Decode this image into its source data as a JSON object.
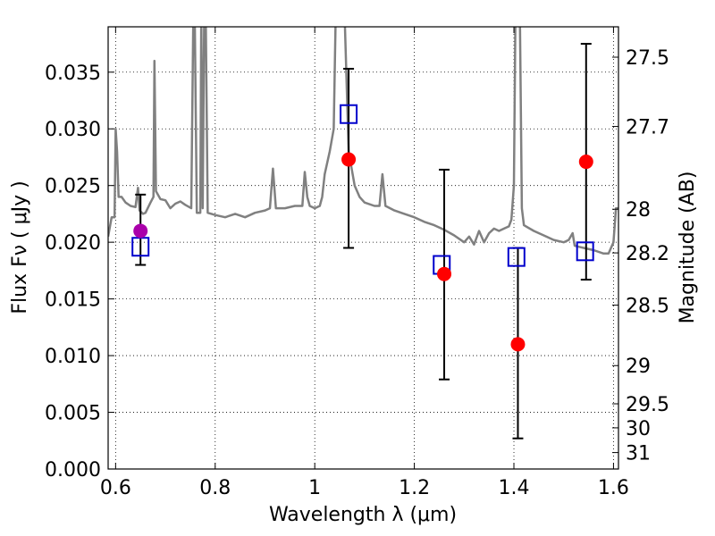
{
  "chart_data": {
    "type": "scatter",
    "xlabel": "Wavelength  λ (μm)",
    "ylabel": "Flux  Fν  ( μJy )",
    "ylabel_right": "Magnitude (AB)",
    "xlim": [
      0.585,
      1.61
    ],
    "ylim": [
      0.0,
      0.039
    ],
    "grid": true,
    "x_ticks": [
      0.6,
      0.8,
      1.0,
      1.2,
      1.4,
      1.6
    ],
    "x_tick_labels": [
      "0.6",
      "0.8",
      "1",
      "1.2",
      "1.4",
      "1.6"
    ],
    "y_ticks": [
      0.0,
      0.005,
      0.01,
      0.015,
      0.02,
      0.025,
      0.03,
      0.035
    ],
    "y_tick_labels": [
      "0.000",
      "0.005",
      "0.010",
      "0.015",
      "0.020",
      "0.025",
      "0.030",
      "0.035"
    ],
    "right_ticks": [
      {
        "label": "27.5",
        "flux": 0.03632
      },
      {
        "label": "27.7",
        "flux": 0.03021
      },
      {
        "label": "28",
        "flux": 0.02291
      },
      {
        "label": "28.2",
        "flux": 0.01906
      },
      {
        "label": "28.5",
        "flux": 0.01445
      },
      {
        "label": "29",
        "flux": 0.00912
      },
      {
        "label": "29.5",
        "flux": 0.00575
      },
      {
        "label": "30",
        "flux": 0.00363
      },
      {
        "label": "31",
        "flux": 0.00145
      }
    ],
    "series": [
      {
        "kind": "line",
        "color": "#808080",
        "points": [
          [
            0.585,
            0.0205
          ],
          [
            0.592,
            0.0222
          ],
          [
            0.598,
            0.0222
          ],
          [
            0.6,
            0.03
          ],
          [
            0.603,
            0.028
          ],
          [
            0.606,
            0.024
          ],
          [
            0.612,
            0.024
          ],
          [
            0.62,
            0.0235
          ],
          [
            0.63,
            0.0232
          ],
          [
            0.64,
            0.0231
          ],
          [
            0.645,
            0.0248
          ],
          [
            0.648,
            0.0228
          ],
          [
            0.655,
            0.0225
          ],
          [
            0.66,
            0.0226
          ],
          [
            0.67,
            0.0235
          ],
          [
            0.676,
            0.024
          ],
          [
            0.678,
            0.036
          ],
          [
            0.681,
            0.0245
          ],
          [
            0.69,
            0.0238
          ],
          [
            0.7,
            0.0237
          ],
          [
            0.71,
            0.023
          ],
          [
            0.72,
            0.0234
          ],
          [
            0.73,
            0.0236
          ],
          [
            0.74,
            0.0233
          ],
          [
            0.752,
            0.023
          ],
          [
            0.756,
            0.04
          ],
          [
            0.759,
            0.04
          ],
          [
            0.763,
            0.0226
          ],
          [
            0.77,
            0.0226
          ],
          [
            0.772,
            0.04
          ],
          [
            0.775,
            0.023
          ],
          [
            0.778,
            0.04
          ],
          [
            0.781,
            0.04
          ],
          [
            0.785,
            0.0226
          ],
          [
            0.8,
            0.0224
          ],
          [
            0.82,
            0.0222
          ],
          [
            0.84,
            0.0225
          ],
          [
            0.86,
            0.0222
          ],
          [
            0.88,
            0.0226
          ],
          [
            0.9,
            0.0228
          ],
          [
            0.91,
            0.023
          ],
          [
            0.916,
            0.0265
          ],
          [
            0.922,
            0.023
          ],
          [
            0.94,
            0.023
          ],
          [
            0.96,
            0.0232
          ],
          [
            0.975,
            0.0232
          ],
          [
            0.98,
            0.0262
          ],
          [
            0.985,
            0.024
          ],
          [
            0.99,
            0.0232
          ],
          [
            1.0,
            0.023
          ],
          [
            1.01,
            0.0232
          ],
          [
            1.015,
            0.024
          ],
          [
            1.02,
            0.026
          ],
          [
            1.03,
            0.028
          ],
          [
            1.038,
            0.03
          ],
          [
            1.042,
            0.04
          ],
          [
            1.06,
            0.04
          ],
          [
            1.068,
            0.028
          ],
          [
            1.08,
            0.025
          ],
          [
            1.09,
            0.024
          ],
          [
            1.1,
            0.0235
          ],
          [
            1.12,
            0.0232
          ],
          [
            1.13,
            0.0232
          ],
          [
            1.136,
            0.026
          ],
          [
            1.142,
            0.0232
          ],
          [
            1.16,
            0.0228
          ],
          [
            1.18,
            0.0225
          ],
          [
            1.2,
            0.0222
          ],
          [
            1.22,
            0.0218
          ],
          [
            1.24,
            0.0215
          ],
          [
            1.26,
            0.0211
          ],
          [
            1.28,
            0.0206
          ],
          [
            1.3,
            0.02
          ],
          [
            1.31,
            0.0205
          ],
          [
            1.32,
            0.0198
          ],
          [
            1.33,
            0.021
          ],
          [
            1.34,
            0.02
          ],
          [
            1.35,
            0.0208
          ],
          [
            1.36,
            0.0212
          ],
          [
            1.37,
            0.021
          ],
          [
            1.38,
            0.0212
          ],
          [
            1.39,
            0.0214
          ],
          [
            1.395,
            0.022
          ],
          [
            1.4,
            0.025
          ],
          [
            1.403,
            0.04
          ],
          [
            1.412,
            0.04
          ],
          [
            1.416,
            0.023
          ],
          [
            1.42,
            0.0215
          ],
          [
            1.44,
            0.021
          ],
          [
            1.46,
            0.0206
          ],
          [
            1.48,
            0.0202
          ],
          [
            1.5,
            0.02
          ],
          [
            1.51,
            0.0202
          ],
          [
            1.518,
            0.0208
          ],
          [
            1.522,
            0.0197
          ],
          [
            1.53,
            0.0196
          ],
          [
            1.54,
            0.0195
          ],
          [
            1.56,
            0.0193
          ],
          [
            1.58,
            0.019
          ],
          [
            1.59,
            0.019
          ],
          [
            1.6,
            0.02
          ],
          [
            1.605,
            0.023
          ],
          [
            1.61,
            0.023
          ]
        ]
      },
      {
        "kind": "errorbar",
        "color": "#000000",
        "points": [
          {
            "x": 0.65,
            "y": 0.021,
            "lo": 0.018,
            "hi": 0.0242
          },
          {
            "x": 1.068,
            "y": 0.0273,
            "lo": 0.0195,
            "hi": 0.0353
          },
          {
            "x": 1.26,
            "y": 0.0172,
            "lo": 0.0079,
            "hi": 0.0264
          },
          {
            "x": 1.408,
            "y": 0.011,
            "lo": 0.0027,
            "hi": 0.0195
          },
          {
            "x": 1.545,
            "y": 0.0271,
            "lo": 0.0167,
            "hi": 0.0375
          }
        ]
      },
      {
        "kind": "open-square",
        "color": "#0000cc",
        "points": [
          [
            0.65,
            0.0196
          ],
          [
            1.068,
            0.0313
          ],
          [
            1.255,
            0.018
          ],
          [
            1.405,
            0.0187
          ],
          [
            1.543,
            0.0192
          ]
        ]
      },
      {
        "kind": "filled-circle",
        "color": "#ff0000",
        "points": [
          [
            1.068,
            0.0273
          ],
          [
            1.26,
            0.0172
          ],
          [
            1.408,
            0.011
          ],
          [
            1.545,
            0.0271
          ]
        ]
      },
      {
        "kind": "filled-circle",
        "color": "#aa00aa",
        "points": [
          [
            0.65,
            0.021
          ]
        ]
      }
    ]
  }
}
